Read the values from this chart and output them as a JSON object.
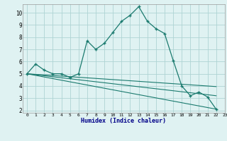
{
  "bg_color": "#dff2f2",
  "grid_color": "#aed4d4",
  "line_color": "#1a7a6e",
  "xlabel": "Humidex (Indice chaleur)",
  "xlim": [
    -0.5,
    23
  ],
  "ylim": [
    1.8,
    10.7
  ],
  "xtick_labels": [
    "0",
    "1",
    "2",
    "3",
    "4",
    "5",
    "6",
    "7",
    "8",
    "9",
    "10",
    "11",
    "12",
    "13",
    "14",
    "15",
    "16",
    "17",
    "18",
    "19",
    "20",
    "21",
    "22",
    "23"
  ],
  "xtick_vals": [
    0,
    1,
    2,
    3,
    4,
    5,
    6,
    7,
    8,
    9,
    10,
    11,
    12,
    13,
    14,
    15,
    16,
    17,
    18,
    19,
    20,
    21,
    22,
    23
  ],
  "ytick_vals": [
    2,
    3,
    4,
    5,
    6,
    7,
    8,
    9,
    10
  ],
  "series1_x": [
    0,
    1,
    2,
    3,
    4,
    5,
    6,
    7,
    8,
    9,
    10,
    11,
    12,
    13,
    14,
    15,
    16,
    17,
    18,
    19,
    20,
    21,
    22
  ],
  "series1_y": [
    5.0,
    5.8,
    5.3,
    5.0,
    5.0,
    4.7,
    5.0,
    7.7,
    7.0,
    7.5,
    8.4,
    9.3,
    9.8,
    10.5,
    9.3,
    8.7,
    8.3,
    6.1,
    4.0,
    3.2,
    3.5,
    3.1,
    2.1
  ],
  "series2_x": [
    0,
    22
  ],
  "series2_y": [
    5.0,
    3.95
  ],
  "series3_x": [
    0,
    22
  ],
  "series3_y": [
    5.0,
    3.2
  ],
  "series4_x": [
    0,
    22
  ],
  "series4_y": [
    5.0,
    2.1
  ]
}
